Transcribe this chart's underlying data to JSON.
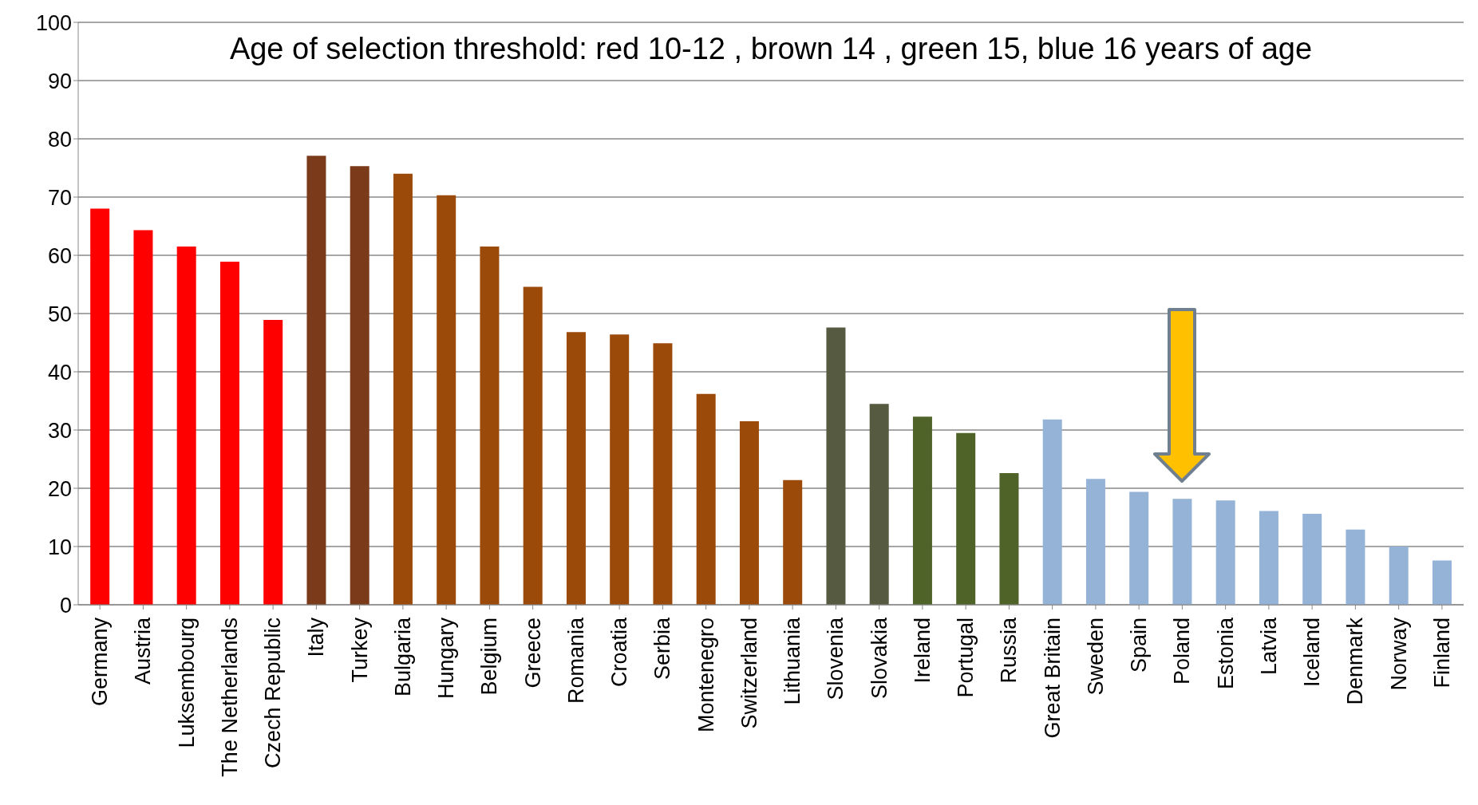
{
  "chart_data": {
    "type": "bar",
    "title": "Age of selection threshold: red 10-12 , brown 14 , green 15, blue 16 years of age",
    "categories": [
      "Germany",
      "Austria",
      "Luksembourg",
      "The Netherlands",
      "Czech Republic",
      "Italy",
      "Turkey",
      "Bulgaria",
      "Hungary",
      "Belgium",
      "Greece",
      "Romania",
      "Croatia",
      "Serbia",
      "Montenegro",
      "Switzerland",
      "Lithuania",
      "Slovenia",
      "Slovakia",
      "Ireland",
      "Portugal",
      "Russia",
      "Great Britain",
      "Sweden",
      "Spain",
      "Poland",
      "Estonia",
      "Latvia",
      "Iceland",
      "Denmark",
      "Norway",
      "Finland"
    ],
    "values": [
      68,
      64.3,
      61.5,
      58.9,
      48.9,
      77.1,
      75.3,
      74,
      70.3,
      61.5,
      54.6,
      46.8,
      46.4,
      44.9,
      36.2,
      31.5,
      21.4,
      47.6,
      34.5,
      32.3,
      29.5,
      22.6,
      31.8,
      21.6,
      19.4,
      18.2,
      17.9,
      16.1,
      15.6,
      12.9,
      10,
      7.6
    ],
    "colors": [
      "#ff0000",
      "#ff0000",
      "#ff0000",
      "#ff0000",
      "#ff0000",
      "#7b3a1a",
      "#7b3a1a",
      "#9c4a0a",
      "#9c4a0a",
      "#9c4a0a",
      "#9c4a0a",
      "#9c4a0a",
      "#9c4a0a",
      "#9c4a0a",
      "#9c4a0a",
      "#9c4a0a",
      "#9c4a0a",
      "#555a40",
      "#555a40",
      "#4f6228",
      "#4f6228",
      "#4f6228",
      "#95b3d7",
      "#95b3d7",
      "#95b3d7",
      "#95b3d7",
      "#95b3d7",
      "#95b3d7",
      "#95b3d7",
      "#95b3d7",
      "#95b3d7",
      "#95b3d7"
    ],
    "ylim": [
      0,
      100
    ],
    "yticks": [
      0,
      10,
      20,
      30,
      40,
      50,
      60,
      70,
      80,
      90,
      100
    ],
    "grid": "y",
    "legend": false
  }
}
